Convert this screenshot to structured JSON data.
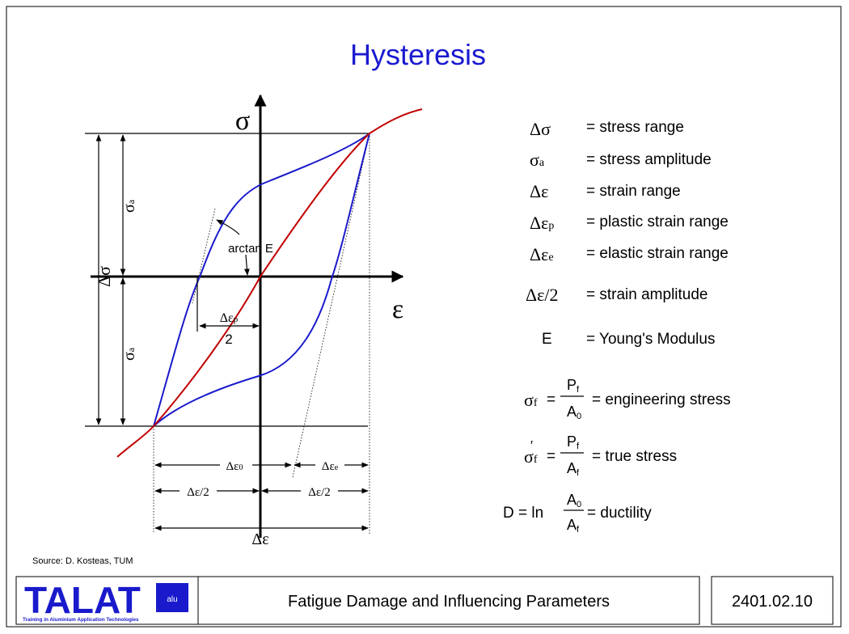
{
  "title": "Hysteresis",
  "diagram": {
    "sigma_axis": "σ",
    "epsilon_axis": "ε",
    "stress_range": "Δσ",
    "stress_amp_upper": {
      "symbol": "σ",
      "sub": "a"
    },
    "stress_amp_lower": {
      "symbol": "σ",
      "sub": "a"
    },
    "arctan": "arctan E",
    "plastic_half": {
      "symbol": "Δε",
      "sub": "p",
      "den": "2"
    },
    "dim_plastic": {
      "symbol": "Δε",
      "sub": "0"
    },
    "dim_elastic": {
      "symbol": "Δε",
      "sub": "e"
    },
    "half_left": "Δε/2",
    "half_right": "Δε/2",
    "total": "Δε"
  },
  "legend": [
    {
      "symbol": "Δσ",
      "text": "= stress range"
    },
    {
      "symbol": "σ",
      "sub": "a",
      "text": "= stress amplitude"
    },
    {
      "symbol": "Δε",
      "text": "= strain range"
    },
    {
      "symbol": "Δε",
      "sub": "p",
      "text": "= plastic strain range"
    },
    {
      "symbol": "Δε",
      "sub": "e",
      "text": "= elastic strain range"
    },
    {
      "symbol": "Δε/2",
      "text": "= strain amplitude"
    },
    {
      "symbol": "E",
      "text": "= Young's Modulus"
    }
  ],
  "formulas": [
    {
      "lhs": "σ",
      "sub": "f",
      "eq": "=",
      "num": "P",
      "num_sub": "f",
      "den": "A",
      "den_sub": "0",
      "text": "= engineering stress"
    },
    {
      "lhs": "σ",
      "sub": "f",
      "prime": "′",
      "eq": "=",
      "num": "P",
      "num_sub": "f",
      "den": "A",
      "den_sub": "f",
      "text": "= true stress"
    },
    {
      "lhs": "D = ln",
      "num": "A",
      "num_sub": "0",
      "den": "A",
      "den_sub": "f",
      "text": "= ductility"
    }
  ],
  "source": "Source: D. Kosteas, TUM",
  "footer": {
    "logo": "TALAT",
    "logo_badge": "alu",
    "logo_subtitle": "Training in Aluminium Application Technologies",
    "title": "Fatigue Damage and Influencing Parameters",
    "code": "2401.02.10"
  }
}
